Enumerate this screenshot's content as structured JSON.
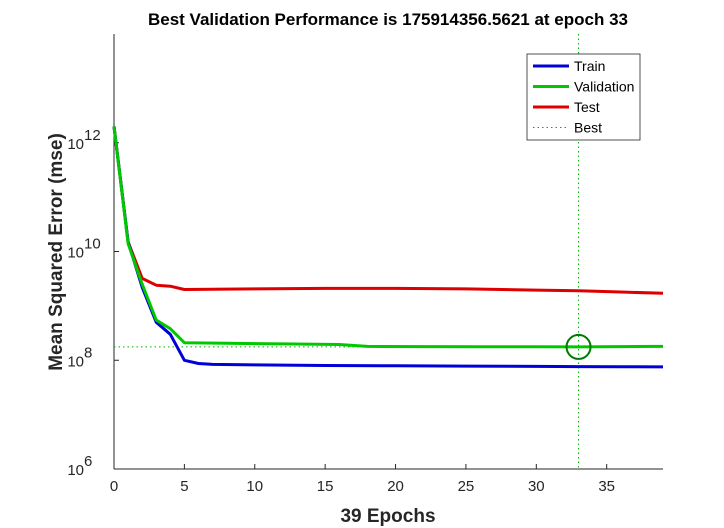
{
  "chart_data": {
    "type": "line",
    "title": "Best Validation Performance is 175914356.5621 at epoch 33",
    "xlabel": "39 Epochs",
    "ylabel": "Mean Squared Error  (mse)",
    "xlim": [
      0,
      39
    ],
    "ylim": [
      1000000,
      100000000000000
    ],
    "yscale": "log",
    "grid": false,
    "legend_position": "top-right",
    "x_ticks": [
      {
        "value": 0,
        "label": "0"
      },
      {
        "value": 5,
        "label": "5"
      },
      {
        "value": 10,
        "label": "10"
      },
      {
        "value": 15,
        "label": "15"
      },
      {
        "value": 20,
        "label": "20"
      },
      {
        "value": 25,
        "label": "25"
      },
      {
        "value": 30,
        "label": "30"
      },
      {
        "value": 35,
        "label": "35"
      }
    ],
    "y_ticks": [
      {
        "value": 1000000,
        "base": "10",
        "exp": "6"
      },
      {
        "value": 100000000,
        "base": "10",
        "exp": "8"
      },
      {
        "value": 10000000000,
        "base": "10",
        "exp": "10"
      },
      {
        "value": 1000000000000,
        "base": "10",
        "exp": "12"
      }
    ],
    "series": [
      {
        "name": "Train",
        "color": "#0000d9",
        "x": [
          0,
          1,
          2,
          3,
          4,
          5,
          6,
          7,
          10,
          15,
          20,
          25,
          30,
          33,
          36,
          39
        ],
        "values": [
          2000000000000,
          15000000000,
          2200000000,
          500000000,
          300000000,
          100000000,
          87000000,
          84000000,
          82000000,
          80000000,
          79000000,
          78000000,
          77000000,
          76500000,
          76000000,
          75500000
        ]
      },
      {
        "name": "Validation",
        "color": "#00c800",
        "x": [
          0,
          1,
          2,
          3,
          4,
          5,
          8,
          12,
          16,
          18,
          22,
          26,
          30,
          33,
          36,
          39
        ],
        "values": [
          2000000000000,
          14000000000,
          2500000000,
          550000000,
          380000000,
          210000000,
          205000000,
          200000000,
          195000000,
          180000000,
          178000000,
          177000000,
          176500000,
          175914356.5621,
          178000000,
          180000000
        ]
      },
      {
        "name": "Test",
        "color": "#dd0000",
        "x": [
          0,
          1,
          2,
          3,
          4,
          5,
          10,
          15,
          20,
          25,
          30,
          33,
          36,
          39
        ],
        "values": [
          2000000000000,
          15000000000,
          3200000000,
          2400000000,
          2300000000,
          2000000000,
          2050000000,
          2100000000,
          2100000000,
          2050000000,
          1950000000,
          1900000000,
          1800000000,
          1700000000
        ]
      }
    ],
    "best": {
      "label": "Best",
      "epoch": 33,
      "value": 175914356.5621,
      "color": "#00b000",
      "marker": "circle"
    }
  }
}
